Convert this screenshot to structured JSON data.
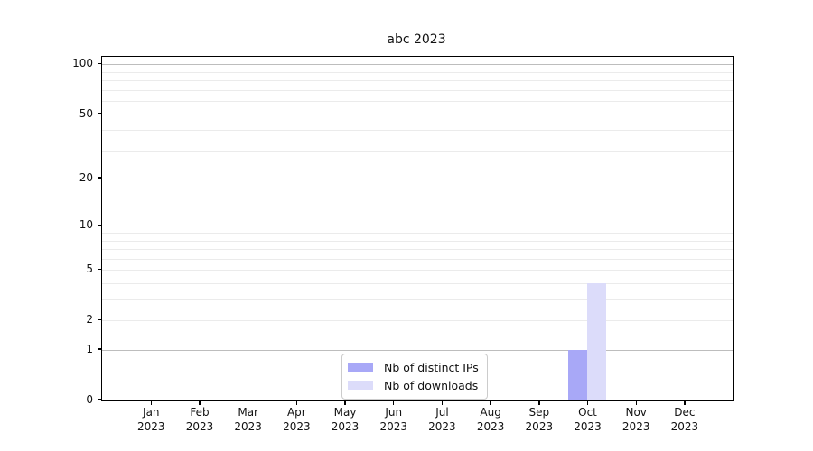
{
  "chart_data": {
    "type": "bar",
    "title": "abc 2023",
    "xlabel": "",
    "ylabel": "",
    "year_label": "2023",
    "categories": [
      "Jan",
      "Feb",
      "Mar",
      "Apr",
      "May",
      "Jun",
      "Jul",
      "Aug",
      "Sep",
      "Oct",
      "Nov",
      "Dec"
    ],
    "series": [
      {
        "name": "Nb of distinct IPs",
        "color": "#a8a8f7",
        "values": [
          0,
          0,
          0,
          0,
          0,
          0,
          0,
          0,
          0,
          1,
          0,
          0
        ]
      },
      {
        "name": "Nb of downloads",
        "color": "#dcdcfa",
        "values": [
          0,
          0,
          0,
          0,
          0,
          0,
          0,
          0,
          0,
          4,
          0,
          0
        ]
      }
    ],
    "y_axis": {
      "scale": "log10(1+y)",
      "tick_labels": [
        "0",
        "1",
        "2",
        "5",
        "10",
        "20",
        "50",
        "100"
      ],
      "ticks": [
        0,
        1,
        2,
        5,
        10,
        20,
        50,
        100
      ],
      "major_gridlines": [
        1,
        10,
        100
      ],
      "minor_gridlines": [
        2,
        3,
        4,
        5,
        6,
        7,
        8,
        9,
        20,
        30,
        40,
        50,
        60,
        70,
        80,
        90
      ],
      "axis_max": 111,
      "ylim": [
        0,
        111
      ],
      "grid": "on"
    },
    "legend": {
      "position": "lower center",
      "entries": [
        "Nb of distinct IPs",
        "Nb of downloads"
      ]
    },
    "colors": {
      "major_grid": "#bdbdbd",
      "minor_grid": "#ebebeb",
      "axis": "#000000",
      "text": "#111111",
      "background": "#ffffff"
    }
  }
}
